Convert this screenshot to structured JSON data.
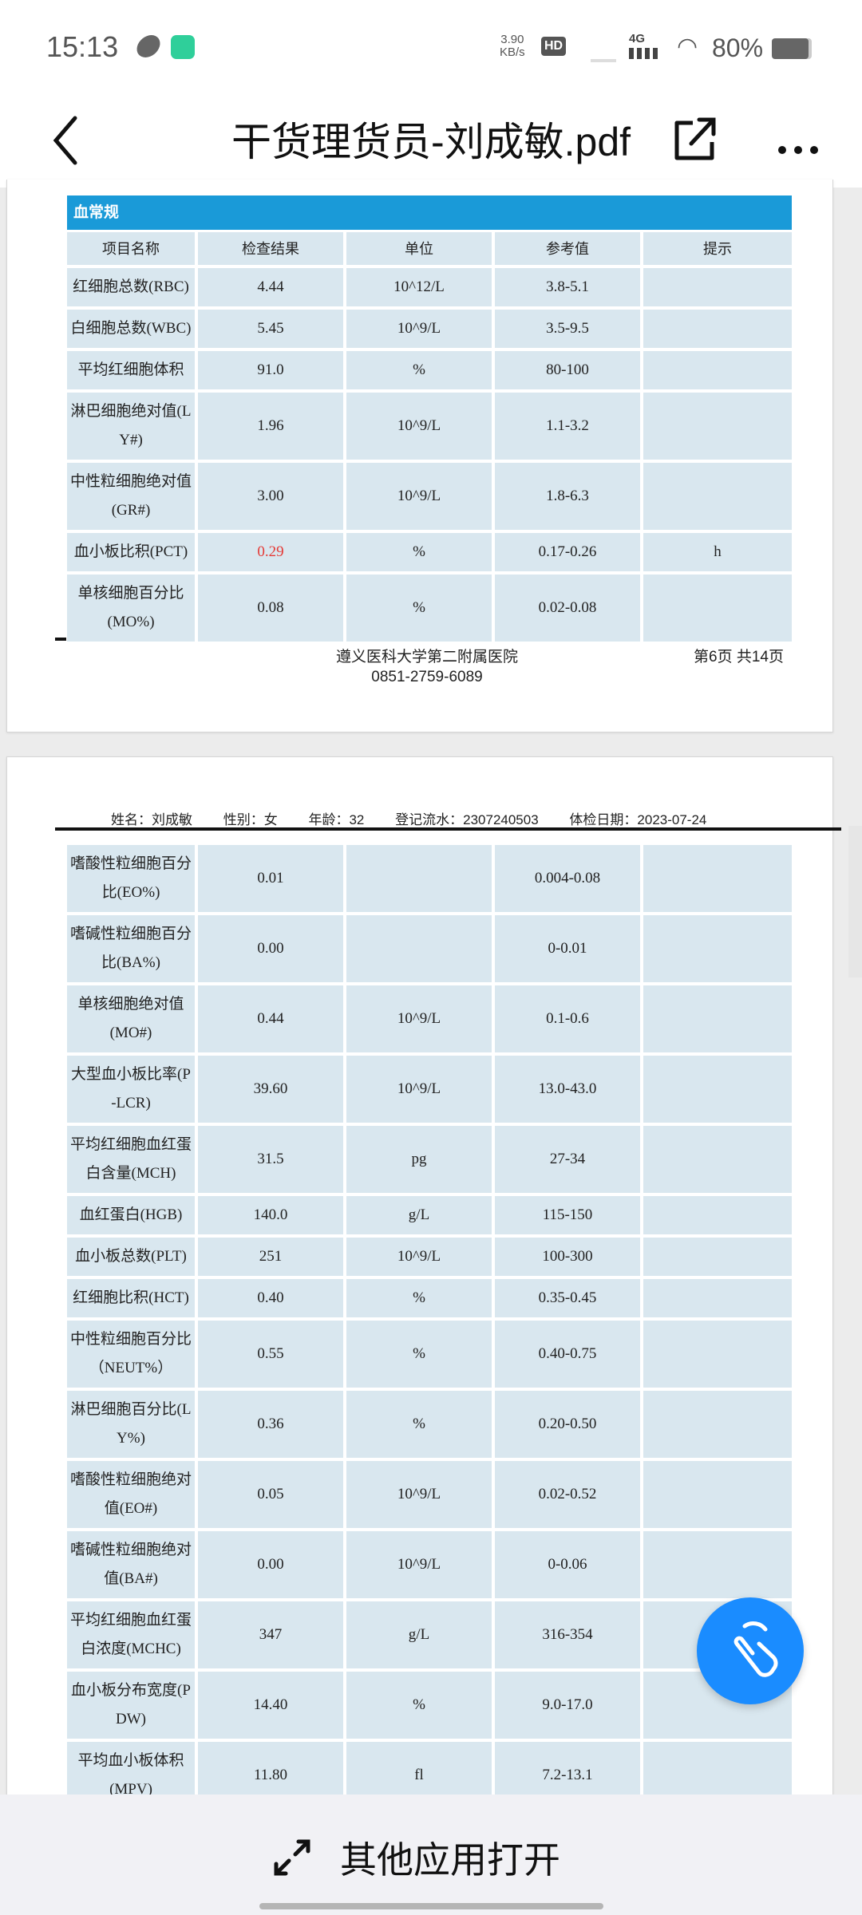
{
  "status": {
    "time": "15:13",
    "net_speed": "3.90",
    "net_unit": "KB/s",
    "hd": "HD",
    "network": "4G",
    "battery": "80%"
  },
  "header": {
    "title": "干货理货员-刘成敏.pdf",
    "back": "back-icon",
    "share": "share-icon",
    "more": "more-icon"
  },
  "page1": {
    "section_title": "血常规",
    "columns": [
      "项目名称",
      "检查结果",
      "单位",
      "参考值",
      "提示"
    ],
    "rows": [
      {
        "name": "红细胞总数(RBC)",
        "result": "4.44",
        "unit": "10^12/L",
        "ref": "3.8-5.1",
        "hint": ""
      },
      {
        "name": "白细胞总数(WBC)",
        "result": "5.45",
        "unit": "10^9/L",
        "ref": "3.5-9.5",
        "hint": ""
      },
      {
        "name": "平均红细胞体积",
        "result": "91.0",
        "unit": "%",
        "ref": "80-100",
        "hint": ""
      },
      {
        "name": "淋巴细胞绝对值(LY#)",
        "result": "1.96",
        "unit": "10^9/L",
        "ref": "1.1-3.2",
        "hint": ""
      },
      {
        "name": "中性粒细胞绝对值(GR#)",
        "result": "3.00",
        "unit": "10^9/L",
        "ref": "1.8-6.3",
        "hint": ""
      },
      {
        "name": "血小板比积(PCT)",
        "result": "0.29",
        "unit": "%",
        "ref": "0.17-0.26",
        "hint": "h",
        "abnormal": true
      },
      {
        "name": "单核细胞百分比(MO%)",
        "result": "0.08",
        "unit": "%",
        "ref": "0.02-0.08",
        "hint": ""
      }
    ],
    "hospital": "遵义医科大学第二附属医院",
    "phone": "0851-2759-6089",
    "page_info": "第6页 共14页"
  },
  "page2": {
    "patient": {
      "name": "姓名：刘成敏",
      "gender": "性别：女",
      "age": "年龄：32",
      "serial": "登记流水：2307240503",
      "date": "体检日期：2023-07-24"
    },
    "rows": [
      {
        "name": "嗜酸性粒细胞百分比(EO%)",
        "result": "0.01",
        "unit": "",
        "ref": "0.004-0.08",
        "hint": ""
      },
      {
        "name": "嗜碱性粒细胞百分比(BA%)",
        "result": "0.00",
        "unit": "",
        "ref": "0-0.01",
        "hint": ""
      },
      {
        "name": "单核细胞绝对值(MO#)",
        "result": "0.44",
        "unit": "10^9/L",
        "ref": "0.1-0.6",
        "hint": ""
      },
      {
        "name": "大型血小板比率(P-LCR)",
        "result": "39.60",
        "unit": "10^9/L",
        "ref": "13.0-43.0",
        "hint": ""
      },
      {
        "name": "平均红细胞血红蛋白含量(MCH)",
        "result": "31.5",
        "unit": "pg",
        "ref": "27-34",
        "hint": ""
      },
      {
        "name": "血红蛋白(HGB)",
        "result": "140.0",
        "unit": "g/L",
        "ref": "115-150",
        "hint": ""
      },
      {
        "name": "血小板总数(PLT)",
        "result": "251",
        "unit": "10^9/L",
        "ref": "100-300",
        "hint": ""
      },
      {
        "name": "红细胞比积(HCT)",
        "result": "0.40",
        "unit": "%",
        "ref": "0.35-0.45",
        "hint": ""
      },
      {
        "name": "中性粒细胞百分比（NEUT%）",
        "result": "0.55",
        "unit": "%",
        "ref": "0.40-0.75",
        "hint": ""
      },
      {
        "name": "淋巴细胞百分比(LY%)",
        "result": "0.36",
        "unit": "%",
        "ref": "0.20-0.50",
        "hint": ""
      },
      {
        "name": "嗜酸性粒细胞绝对值(EO#)",
        "result": "0.05",
        "unit": "10^9/L",
        "ref": "0.02-0.52",
        "hint": ""
      },
      {
        "name": "嗜碱性粒细胞绝对值(BA#)",
        "result": "0.00",
        "unit": "10^9/L",
        "ref": "0-0.06",
        "hint": ""
      },
      {
        "name": "平均红细胞血红蛋白浓度(MCHC)",
        "result": "347",
        "unit": "g/L",
        "ref": "316-354",
        "hint": ""
      },
      {
        "name": "血小板分布宽度(PDW)",
        "result": "14.40",
        "unit": "%",
        "ref": "9.0-17.0",
        "hint": ""
      },
      {
        "name": "平均血小板体积(MPV)",
        "result": "11.80",
        "unit": "fl",
        "ref": "7.2-13.1",
        "hint": ""
      }
    ]
  },
  "bottom": {
    "open_with": "其他应用打开",
    "icon": "expand-icon"
  },
  "colors": {
    "section_header": "#1a9ad8",
    "cell_bg": "#d9e7ef",
    "abnormal": "#e53935",
    "fab": "#1a8cff"
  }
}
